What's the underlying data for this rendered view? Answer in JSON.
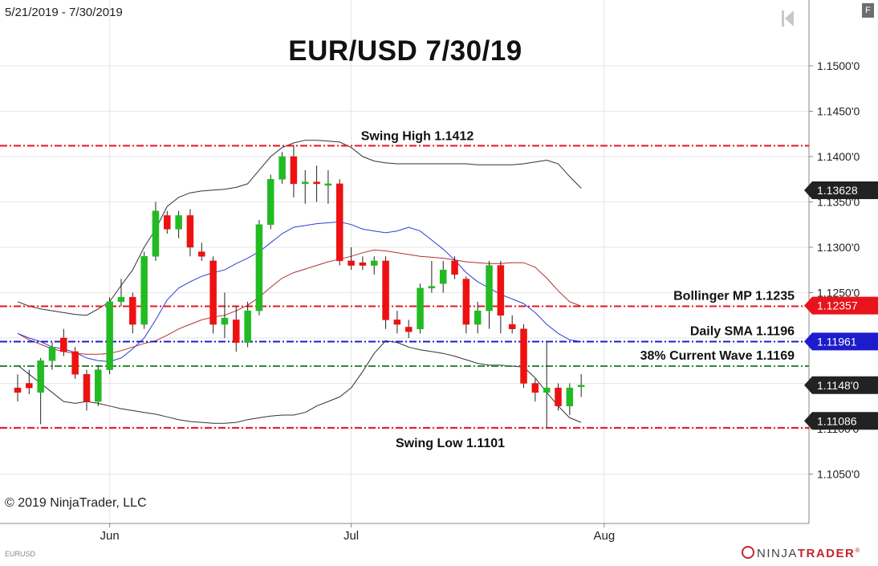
{
  "date_range": "5/21/2019 - 7/30/2019",
  "copyright": "© 2019 NinjaTrader, LLC",
  "symbol": "EURUSD",
  "brand": {
    "prefix": "NINJA",
    "suffix": "TRADER",
    "mark": "®"
  },
  "f_button_label": "F",
  "colors": {
    "bull": "#22bb22",
    "bear": "#ee1111",
    "grid": "#e6e6e6",
    "red_level": "#e8141c",
    "blue_level": "#1c1ccc",
    "green_level": "#2e8b3a",
    "bollinger_band": "#333333",
    "sma": "#2b3fd6",
    "bollinger_mid": "#b03030"
  },
  "chart_data": {
    "type": "candlestick",
    "title": "EUR/USD 7/30/19",
    "y_tick_labels": [
      {
        "value": 1.105,
        "label": "1.1050'0"
      },
      {
        "value": 1.11,
        "label": "1.1100'0"
      },
      {
        "value": 1.115,
        "label": "1.1150'0"
      },
      {
        "value": 1.12,
        "label": "1.1200'0"
      },
      {
        "value": 1.125,
        "label": "1.1250'0"
      },
      {
        "value": 1.13,
        "label": "1.1300'0"
      },
      {
        "value": 1.135,
        "label": "1.1350'0"
      },
      {
        "value": 1.14,
        "label": "1.1400'0"
      },
      {
        "value": 1.145,
        "label": "1.1450'0"
      },
      {
        "value": 1.15,
        "label": "1.1500'0"
      }
    ],
    "x_tick_labels": [
      {
        "index": 8,
        "label": "Jun"
      },
      {
        "index": 29,
        "label": "Jul"
      },
      {
        "index": 51,
        "label": "Aug"
      }
    ],
    "price_markers": [
      {
        "value": 1.13628,
        "label": "1.13628",
        "color": "#222222"
      },
      {
        "value": 1.12357,
        "label": "1.12357",
        "color": "#e8141c"
      },
      {
        "value": 1.11961,
        "label": "1.11961",
        "color": "#1c1ccc"
      },
      {
        "value": 1.1148,
        "label": "1.1148'0",
        "color": "#222222"
      },
      {
        "value": 1.11086,
        "label": "1.11086",
        "color": "#222222"
      }
    ],
    "levels": [
      {
        "name": "Swing High 1.1412",
        "value": 1.1412,
        "color": "#e8141c",
        "label_pos": "above-center"
      },
      {
        "name": "Bollinger MP 1.1235",
        "value": 1.1235,
        "color": "#e8141c",
        "label_pos": "above-right"
      },
      {
        "name": "Daily SMA 1.1196",
        "value": 1.1196,
        "color": "#1c1ccc",
        "label_pos": "above-right"
      },
      {
        "name": "38% Current Wave 1.1169",
        "value": 1.1169,
        "color": "#2e8b3a",
        "label_pos": "above-right"
      },
      {
        "name": "Swing Low 1.1101",
        "value": 1.1101,
        "color": "#e8141c",
        "label_pos": "below-center"
      }
    ],
    "candles": [
      {
        "o": 1.1145,
        "h": 1.116,
        "l": 1.113,
        "c": 1.114
      },
      {
        "o": 1.115,
        "h": 1.1165,
        "l": 1.1138,
        "c": 1.1145
      },
      {
        "o": 1.114,
        "h": 1.1178,
        "l": 1.1105,
        "c": 1.1175
      },
      {
        "o": 1.1175,
        "h": 1.1195,
        "l": 1.1165,
        "c": 1.119
      },
      {
        "o": 1.12,
        "h": 1.121,
        "l": 1.118,
        "c": 1.1185
      },
      {
        "o": 1.1185,
        "h": 1.119,
        "l": 1.1155,
        "c": 1.116
      },
      {
        "o": 1.116,
        "h": 1.1165,
        "l": 1.112,
        "c": 1.113
      },
      {
        "o": 1.113,
        "h": 1.117,
        "l": 1.1125,
        "c": 1.1165
      },
      {
        "o": 1.1165,
        "h": 1.1245,
        "l": 1.116,
        "c": 1.124
      },
      {
        "o": 1.124,
        "h": 1.1265,
        "l": 1.1235,
        "c": 1.1245
      },
      {
        "o": 1.1245,
        "h": 1.125,
        "l": 1.1205,
        "c": 1.1215
      },
      {
        "o": 1.1215,
        "h": 1.1295,
        "l": 1.121,
        "c": 1.129
      },
      {
        "o": 1.129,
        "h": 1.135,
        "l": 1.1285,
        "c": 1.134
      },
      {
        "o": 1.1335,
        "h": 1.134,
        "l": 1.1315,
        "c": 1.132
      },
      {
        "o": 1.132,
        "h": 1.134,
        "l": 1.131,
        "c": 1.1335
      },
      {
        "o": 1.1335,
        "h": 1.1342,
        "l": 1.129,
        "c": 1.13
      },
      {
        "o": 1.1295,
        "h": 1.1305,
        "l": 1.1285,
        "c": 1.129
      },
      {
        "o": 1.1285,
        "h": 1.129,
        "l": 1.1205,
        "c": 1.1215
      },
      {
        "o": 1.1215,
        "h": 1.125,
        "l": 1.12,
        "c": 1.1222
      },
      {
        "o": 1.122,
        "h": 1.1235,
        "l": 1.1185,
        "c": 1.1195
      },
      {
        "o": 1.1195,
        "h": 1.124,
        "l": 1.119,
        "c": 1.123
      },
      {
        "o": 1.123,
        "h": 1.133,
        "l": 1.1225,
        "c": 1.1325
      },
      {
        "o": 1.1325,
        "h": 1.138,
        "l": 1.132,
        "c": 1.1375
      },
      {
        "o": 1.1375,
        "h": 1.1405,
        "l": 1.137,
        "c": 1.14
      },
      {
        "o": 1.14,
        "h": 1.1412,
        "l": 1.1355,
        "c": 1.137
      },
      {
        "o": 1.137,
        "h": 1.1385,
        "l": 1.1348,
        "c": 1.1372
      },
      {
        "o": 1.1372,
        "h": 1.139,
        "l": 1.135,
        "c": 1.137
      },
      {
        "o": 1.137,
        "h": 1.1385,
        "l": 1.1348,
        "c": 1.137
      },
      {
        "o": 1.137,
        "h": 1.1375,
        "l": 1.128,
        "c": 1.1285
      },
      {
        "o": 1.1285,
        "h": 1.13,
        "l": 1.1275,
        "c": 1.128
      },
      {
        "o": 1.1283,
        "h": 1.129,
        "l": 1.1275,
        "c": 1.128
      },
      {
        "o": 1.128,
        "h": 1.129,
        "l": 1.127,
        "c": 1.1285
      },
      {
        "o": 1.1285,
        "h": 1.129,
        "l": 1.121,
        "c": 1.122
      },
      {
        "o": 1.122,
        "h": 1.123,
        "l": 1.1205,
        "c": 1.1215
      },
      {
        "o": 1.1212,
        "h": 1.122,
        "l": 1.12,
        "c": 1.1207
      },
      {
        "o": 1.121,
        "h": 1.126,
        "l": 1.1205,
        "c": 1.1255
      },
      {
        "o": 1.1255,
        "h": 1.1285,
        "l": 1.125,
        "c": 1.1257
      },
      {
        "o": 1.126,
        "h": 1.1285,
        "l": 1.125,
        "c": 1.1275
      },
      {
        "o": 1.1285,
        "h": 1.129,
        "l": 1.1265,
        "c": 1.127
      },
      {
        "o": 1.1265,
        "h": 1.1268,
        "l": 1.1205,
        "c": 1.1215
      },
      {
        "o": 1.1215,
        "h": 1.124,
        "l": 1.1205,
        "c": 1.123
      },
      {
        "o": 1.123,
        "h": 1.1285,
        "l": 1.121,
        "c": 1.128
      },
      {
        "o": 1.128,
        "h": 1.1285,
        "l": 1.1205,
        "c": 1.1225
      },
      {
        "o": 1.1215,
        "h": 1.1225,
        "l": 1.1205,
        "c": 1.121
      },
      {
        "o": 1.121,
        "h": 1.1215,
        "l": 1.1145,
        "c": 1.115
      },
      {
        "o": 1.115,
        "h": 1.1155,
        "l": 1.113,
        "c": 1.114
      },
      {
        "o": 1.114,
        "h": 1.1195,
        "l": 1.1101,
        "c": 1.1145
      },
      {
        "o": 1.1145,
        "h": 1.115,
        "l": 1.112,
        "c": 1.1125
      },
      {
        "o": 1.1125,
        "h": 1.115,
        "l": 1.1115,
        "c": 1.1145
      },
      {
        "o": 1.1148,
        "h": 1.116,
        "l": 1.1135,
        "c": 1.1148
      }
    ],
    "bollinger_upper": [
      1.124,
      1.1235,
      1.1232,
      1.123,
      1.1228,
      1.1226,
      1.1225,
      1.1232,
      1.124,
      1.1258,
      1.1275,
      1.13,
      1.132,
      1.1345,
      1.1355,
      1.136,
      1.1362,
      1.1363,
      1.1364,
      1.1366,
      1.137,
      1.1385,
      1.14,
      1.141,
      1.1415,
      1.1418,
      1.1418,
      1.1417,
      1.1416,
      1.141,
      1.14,
      1.1395,
      1.1393,
      1.1392,
      1.1392,
      1.1392,
      1.1392,
      1.1392,
      1.1392,
      1.1392,
      1.1391,
      1.1391,
      1.1391,
      1.1391,
      1.1392,
      1.1394,
      1.1396,
      1.1392,
      1.1378,
      1.1365
    ],
    "bollinger_lower": [
      1.117,
      1.116,
      1.115,
      1.114,
      1.113,
      1.1128,
      1.113,
      1.1128,
      1.1125,
      1.1122,
      1.112,
      1.1118,
      1.1116,
      1.1113,
      1.111,
      1.1108,
      1.1107,
      1.1106,
      1.1106,
      1.1107,
      1.111,
      1.1112,
      1.1114,
      1.1115,
      1.1115,
      1.1118,
      1.1125,
      1.113,
      1.1135,
      1.1145,
      1.1163,
      1.1183,
      1.1197,
      1.1195,
      1.119,
      1.1187,
      1.1185,
      1.1183,
      1.118,
      1.1176,
      1.1172,
      1.117,
      1.117,
      1.1169,
      1.1168,
      1.1156,
      1.114,
      1.1125,
      1.1112,
      1.1107
    ],
    "sma": [
      1.1205,
      1.12,
      1.1196,
      1.119,
      1.1188,
      1.1184,
      1.1178,
      1.1175,
      1.1174,
      1.1178,
      1.1188,
      1.12,
      1.122,
      1.1242,
      1.1255,
      1.1262,
      1.1268,
      1.1272,
      1.1275,
      1.1282,
      1.1288,
      1.1295,
      1.1305,
      1.1315,
      1.1322,
      1.1324,
      1.1326,
      1.1327,
      1.1328,
      1.1325,
      1.132,
      1.1318,
      1.1316,
      1.1318,
      1.1322,
      1.1318,
      1.1308,
      1.1298,
      1.1286,
      1.1272,
      1.1262,
      1.1255,
      1.1248,
      1.1243,
      1.1238,
      1.1228,
      1.1215,
      1.1205,
      1.1198,
      1.1196
    ],
    "bollinger_mid": [
      1.1205,
      1.1198,
      1.1193,
      1.1188,
      1.1185,
      1.1183,
      1.1182,
      1.1182,
      1.1183,
      1.1186,
      1.119,
      1.1194,
      1.1197,
      1.1203,
      1.121,
      1.1215,
      1.122,
      1.1223,
      1.1225,
      1.123,
      1.1236,
      1.1245,
      1.1256,
      1.1266,
      1.1272,
      1.1276,
      1.128,
      1.1284,
      1.1287,
      1.129,
      1.1294,
      1.1297,
      1.1296,
      1.1294,
      1.1292,
      1.129,
      1.1289,
      1.1288,
      1.1286,
      1.1284,
      1.1283,
      1.1282,
      1.1282,
      1.1283,
      1.1283,
      1.1278,
      1.1266,
      1.1252,
      1.124,
      1.1235
    ]
  }
}
